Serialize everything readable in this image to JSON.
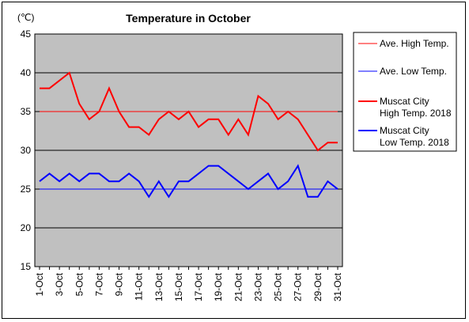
{
  "chart_data": {
    "type": "line",
    "title": "Temperature in October",
    "unit_label": "(℃)",
    "ylim": [
      15,
      45
    ],
    "y_ticks": [
      15,
      20,
      25,
      30,
      35,
      40,
      45
    ],
    "x_tick_labels": [
      "1-Oct",
      "3-Oct",
      "5-Oct",
      "7-Oct",
      "9-Oct",
      "11-Oct",
      "13-Oct",
      "15-Oct",
      "17-Oct",
      "19-Oct",
      "21-Oct",
      "23-Oct",
      "25-Oct",
      "27-Oct",
      "29-Oct",
      "31-Oct"
    ],
    "x": [
      1,
      2,
      3,
      4,
      5,
      6,
      7,
      8,
      9,
      10,
      11,
      12,
      13,
      14,
      15,
      16,
      17,
      18,
      19,
      20,
      21,
      22,
      23,
      24,
      25,
      26,
      27,
      28,
      29,
      30,
      31
    ],
    "grid": "horizontal",
    "legend_position": "right",
    "plot_background": "#c0c0c0",
    "series": [
      {
        "name": "Ave. High Temp.",
        "color": "#ff0000",
        "width": 1,
        "values": [
          35,
          35,
          35,
          35,
          35,
          35,
          35,
          35,
          35,
          35,
          35,
          35,
          35,
          35,
          35,
          35,
          35,
          35,
          35,
          35,
          35,
          35,
          35,
          35,
          35,
          35,
          35,
          35,
          35,
          35,
          35
        ]
      },
      {
        "name": "Ave. Low Temp.",
        "color": "#0000ff",
        "width": 1,
        "values": [
          25,
          25,
          25,
          25,
          25,
          25,
          25,
          25,
          25,
          25,
          25,
          25,
          25,
          25,
          25,
          25,
          25,
          25,
          25,
          25,
          25,
          25,
          25,
          25,
          25,
          25,
          25,
          25,
          25,
          25,
          25
        ]
      },
      {
        "name": "Muscat City\nHigh Temp. 2018",
        "color": "#ff0000",
        "width": 2,
        "values": [
          38,
          38,
          39,
          40,
          36,
          34,
          35,
          38,
          35,
          33,
          33,
          32,
          34,
          35,
          34,
          35,
          33,
          34,
          34,
          32,
          34,
          32,
          37,
          36,
          34,
          35,
          34,
          32,
          30,
          31,
          31
        ]
      },
      {
        "name": "Muscat City\nLow Temp. 2018",
        "color": "#0000ff",
        "width": 2,
        "values": [
          26,
          27,
          26,
          27,
          26,
          27,
          27,
          26,
          26,
          27,
          26,
          24,
          26,
          24,
          26,
          26,
          27,
          28,
          28,
          27,
          26,
          25,
          26,
          27,
          25,
          26,
          28,
          24,
          24,
          26,
          25
        ]
      }
    ]
  }
}
